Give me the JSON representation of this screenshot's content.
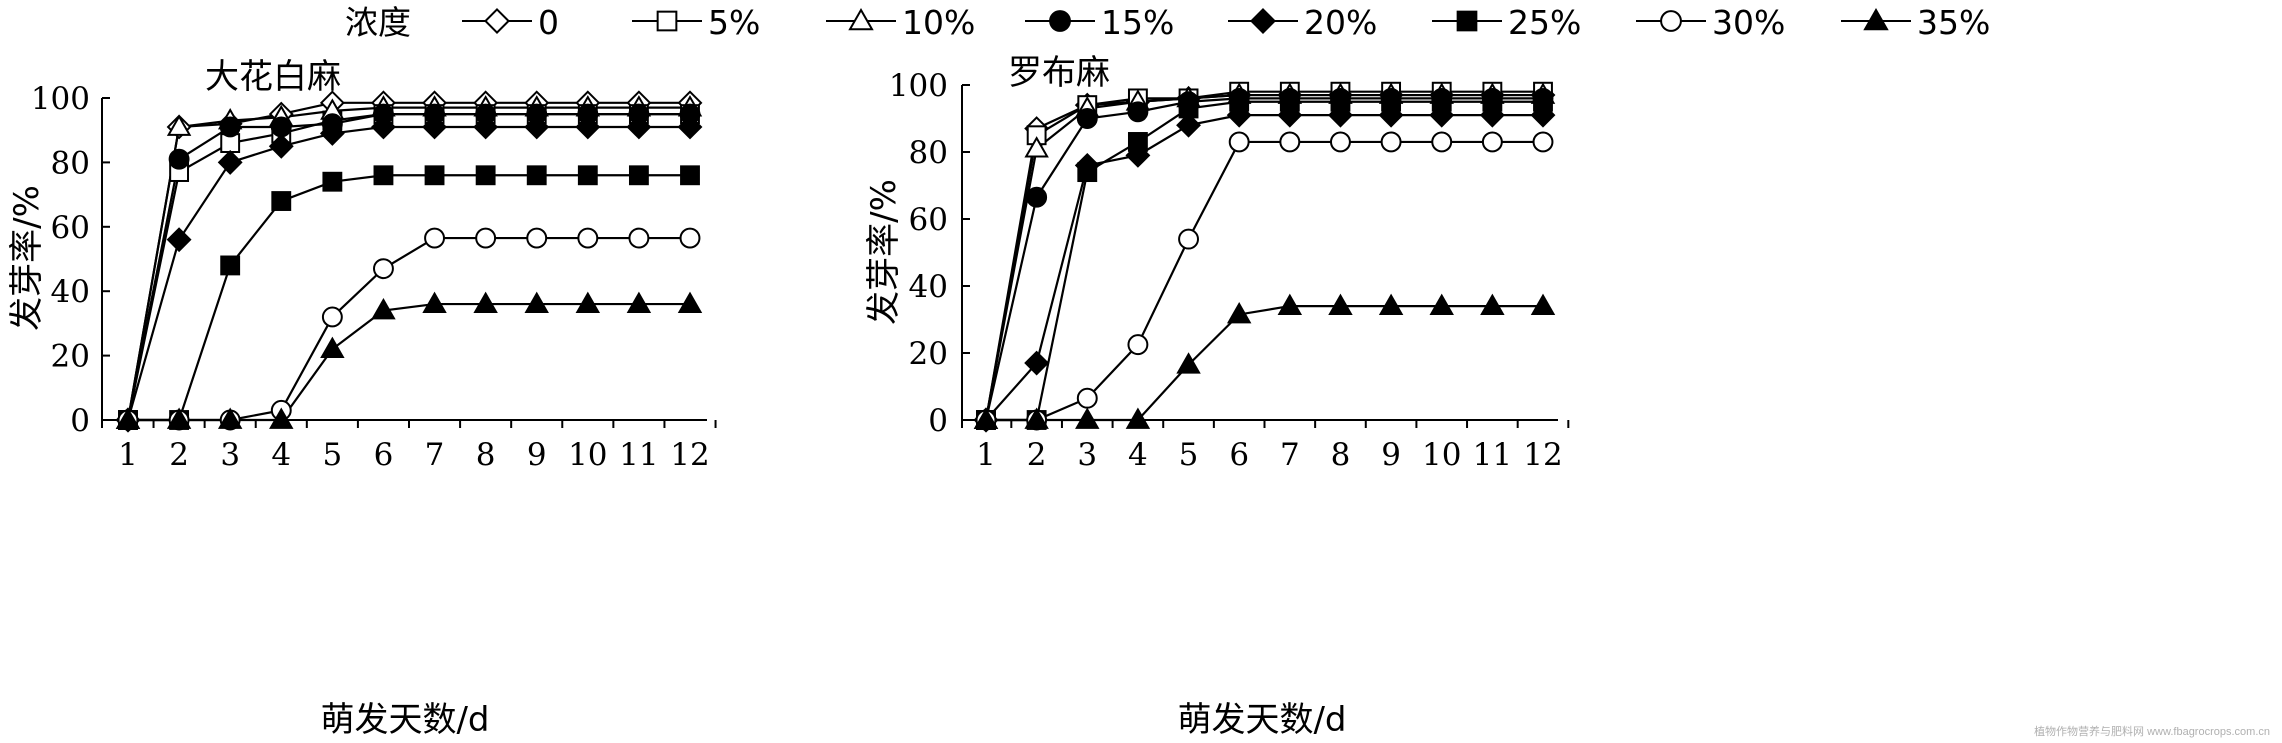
{
  "legend": {
    "title": "浓度",
    "entries": [
      {
        "label": "0",
        "marker": "diamond-open"
      },
      {
        "label": "5%",
        "marker": "square-open"
      },
      {
        "label": "10%",
        "marker": "triangle-open"
      },
      {
        "label": "15%",
        "marker": "circle-filled"
      },
      {
        "label": "20%",
        "marker": "diamond-filled"
      },
      {
        "label": "25%",
        "marker": "square-filled"
      },
      {
        "label": "30%",
        "marker": "circle-open"
      },
      {
        "label": "35%",
        "marker": "triangle-filled"
      }
    ]
  },
  "watermark": "植物作物营养与肥料网 www.fbagrocrops.com.cn",
  "chart_data": [
    {
      "type": "line",
      "title": "大花白麻",
      "xlabel": "萌发天数/d",
      "ylabel": "发芽率/%",
      "x": [
        1,
        2,
        3,
        4,
        5,
        6,
        7,
        8,
        9,
        10,
        11,
        12
      ],
      "ylim": [
        0,
        100
      ],
      "yticks": [
        0,
        20,
        40,
        60,
        80,
        100
      ],
      "grid": false,
      "series": [
        {
          "name": "0",
          "values": [
            0,
            91,
            92,
            95,
            98.5,
            98.5,
            98.5,
            98.5,
            98.5,
            98.5,
            98.5,
            98.5
          ]
        },
        {
          "name": "5%",
          "values": [
            0,
            77,
            86,
            89,
            93,
            95,
            95,
            95,
            95,
            95,
            95,
            95
          ]
        },
        {
          "name": "10%",
          "values": [
            0,
            91,
            93,
            94,
            96,
            97,
            97,
            97,
            97,
            97,
            97,
            97
          ]
        },
        {
          "name": "15%",
          "values": [
            0,
            81,
            91,
            91,
            92,
            95,
            95,
            95,
            95,
            95,
            95,
            95
          ]
        },
        {
          "name": "20%",
          "values": [
            0,
            56,
            80,
            85,
            89,
            91,
            91,
            91,
            91,
            91,
            91,
            91
          ]
        },
        {
          "name": "25%",
          "values": [
            0,
            0,
            48,
            68,
            74,
            76,
            76,
            76,
            76,
            76,
            76,
            76
          ]
        },
        {
          "name": "30%",
          "values": [
            0,
            0,
            0,
            3,
            32,
            47,
            56.5,
            56.5,
            56.5,
            56.5,
            56.5,
            56.5
          ]
        },
        {
          "name": "35%",
          "values": [
            0,
            0,
            0,
            0,
            22,
            34,
            36,
            36,
            36,
            36,
            36,
            36
          ]
        }
      ]
    },
    {
      "type": "line",
      "title": "罗布麻",
      "xlabel": "萌发天数/d",
      "ylabel": "发芽率/%",
      "x": [
        1,
        2,
        3,
        4,
        5,
        6,
        7,
        8,
        9,
        10,
        11,
        12
      ],
      "ylim": [
        0,
        100
      ],
      "yticks": [
        0,
        20,
        40,
        60,
        80,
        100
      ],
      "grid": false,
      "series": [
        {
          "name": "0",
          "values": [
            0,
            87,
            94,
            95,
            96,
            97,
            97,
            97,
            97,
            97,
            97,
            97
          ]
        },
        {
          "name": "5%",
          "values": [
            0,
            85,
            94,
            96,
            96,
            98,
            98,
            98,
            98,
            98,
            98,
            98
          ]
        },
        {
          "name": "10%",
          "values": [
            0,
            81,
            93,
            95,
            96,
            97,
            97,
            97,
            97,
            97,
            97,
            97
          ]
        },
        {
          "name": "15%",
          "values": [
            0,
            66.5,
            90,
            92,
            95,
            96,
            96,
            96,
            96,
            96,
            96,
            96
          ]
        },
        {
          "name": "20%",
          "values": [
            0,
            17,
            76,
            79,
            88,
            91,
            91,
            91,
            91,
            91,
            91,
            91
          ]
        },
        {
          "name": "25%",
          "values": [
            0,
            0,
            74,
            83,
            93,
            95,
            95,
            95,
            95,
            95,
            95,
            95
          ]
        },
        {
          "name": "30%",
          "values": [
            0,
            0,
            6.5,
            22.5,
            54,
            83,
            83,
            83,
            83,
            83,
            83,
            83
          ]
        },
        {
          "name": "35%",
          "values": [
            0,
            0,
            0,
            0,
            16.5,
            31.5,
            34,
            34,
            34,
            34,
            34,
            34
          ]
        }
      ]
    }
  ]
}
